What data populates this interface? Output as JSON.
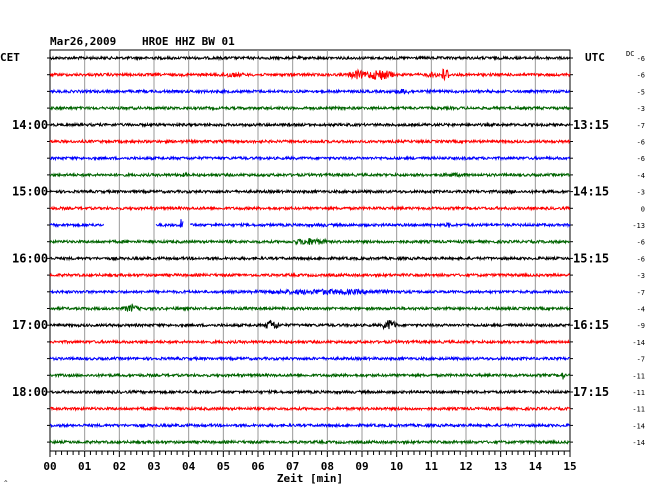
{
  "header": {
    "date": "Mar26,2009",
    "station": "HROE HHZ BW 01",
    "left_tz": "CET",
    "right_tz": "UTC",
    "dc_label": "DC"
  },
  "chart_data": {
    "type": "line",
    "title": "Mar26,2009 HROE HHZ BW 01",
    "xlabel": "Zeit [min]",
    "xlim": [
      0,
      15
    ],
    "x_ticks": [
      "00",
      "01",
      "02",
      "03",
      "04",
      "05",
      "06",
      "07",
      "08",
      "09",
      "10",
      "11",
      "12",
      "13",
      "14",
      "15"
    ],
    "left_hour_labels": [
      {
        "trace": 4,
        "text": "14:00"
      },
      {
        "trace": 8,
        "text": "15:00"
      },
      {
        "trace": 12,
        "text": "16:00"
      },
      {
        "trace": 16,
        "text": "17:00"
      },
      {
        "trace": 20,
        "text": "18:00"
      }
    ],
    "right_hour_labels": [
      {
        "trace": 4,
        "text": "13:15"
      },
      {
        "trace": 8,
        "text": "14:15"
      },
      {
        "trace": 12,
        "text": "15:15"
      },
      {
        "trace": 16,
        "text": "16:15"
      },
      {
        "trace": 20,
        "text": "17:15"
      }
    ],
    "color_cycle": [
      "#000000",
      "#ff0000",
      "#0000ff",
      "#006400"
    ],
    "dc_offsets": [
      -6,
      -6,
      -5,
      -3,
      -7,
      -6,
      -6,
      -4,
      -3,
      0,
      -13,
      -6,
      -6,
      -3,
      -7,
      -4,
      -9,
      -14,
      -7,
      -11,
      -11,
      -11,
      -14,
      -14
    ],
    "events": [
      {
        "trace": 1,
        "start_min": 4.8,
        "end_min": 5.6,
        "amp": 3
      },
      {
        "trace": 1,
        "start_min": 8.6,
        "end_min": 9.1,
        "amp": 5
      },
      {
        "trace": 1,
        "start_min": 9.1,
        "end_min": 9.9,
        "amp": 6
      },
      {
        "trace": 1,
        "start_min": 10.8,
        "end_min": 11.3,
        "amp": 3
      },
      {
        "trace": 1,
        "start_min": 11.3,
        "end_min": 11.5,
        "amp": 9
      },
      {
        "trace": 2,
        "start_min": 9.9,
        "end_min": 10.5,
        "amp": 3
      },
      {
        "trace": 7,
        "start_min": 3.5,
        "end_min": 4.2,
        "amp": 2
      },
      {
        "trace": 7,
        "start_min": 10.8,
        "end_min": 12.4,
        "amp": 2
      },
      {
        "trace": 8,
        "start_min": 13.0,
        "end_min": 13.6,
        "amp": 2
      },
      {
        "trace": 10,
        "start_min": 3.75,
        "end_min": 3.85,
        "amp": 11
      },
      {
        "trace": 10,
        "start_min": 7.6,
        "end_min": 8.1,
        "amp": 2
      },
      {
        "trace": 10,
        "start_min": 11.4,
        "end_min": 11.6,
        "amp": 3
      },
      {
        "trace": 11,
        "start_min": 7.0,
        "end_min": 8.0,
        "amp": 4
      },
      {
        "trace": 14,
        "start_min": 5.8,
        "end_min": 10.2,
        "amp": 3
      },
      {
        "trace": 15,
        "start_min": 2.1,
        "end_min": 2.6,
        "amp": 4
      },
      {
        "trace": 16,
        "start_min": 6.2,
        "end_min": 6.6,
        "amp": 6
      },
      {
        "trace": 16,
        "start_min": 9.6,
        "end_min": 10.0,
        "amp": 6
      },
      {
        "trace": 19,
        "start_min": 14.75,
        "end_min": 14.85,
        "amp": 5
      }
    ],
    "gaps": [
      {
        "trace": 10,
        "start_min": 1.55,
        "end_min": 3.05
      },
      {
        "trace": 10,
        "start_min": 3.85,
        "end_min": 4.05
      }
    ],
    "grid": true
  },
  "footer": {
    "xlabel": "Zeit [min]"
  }
}
